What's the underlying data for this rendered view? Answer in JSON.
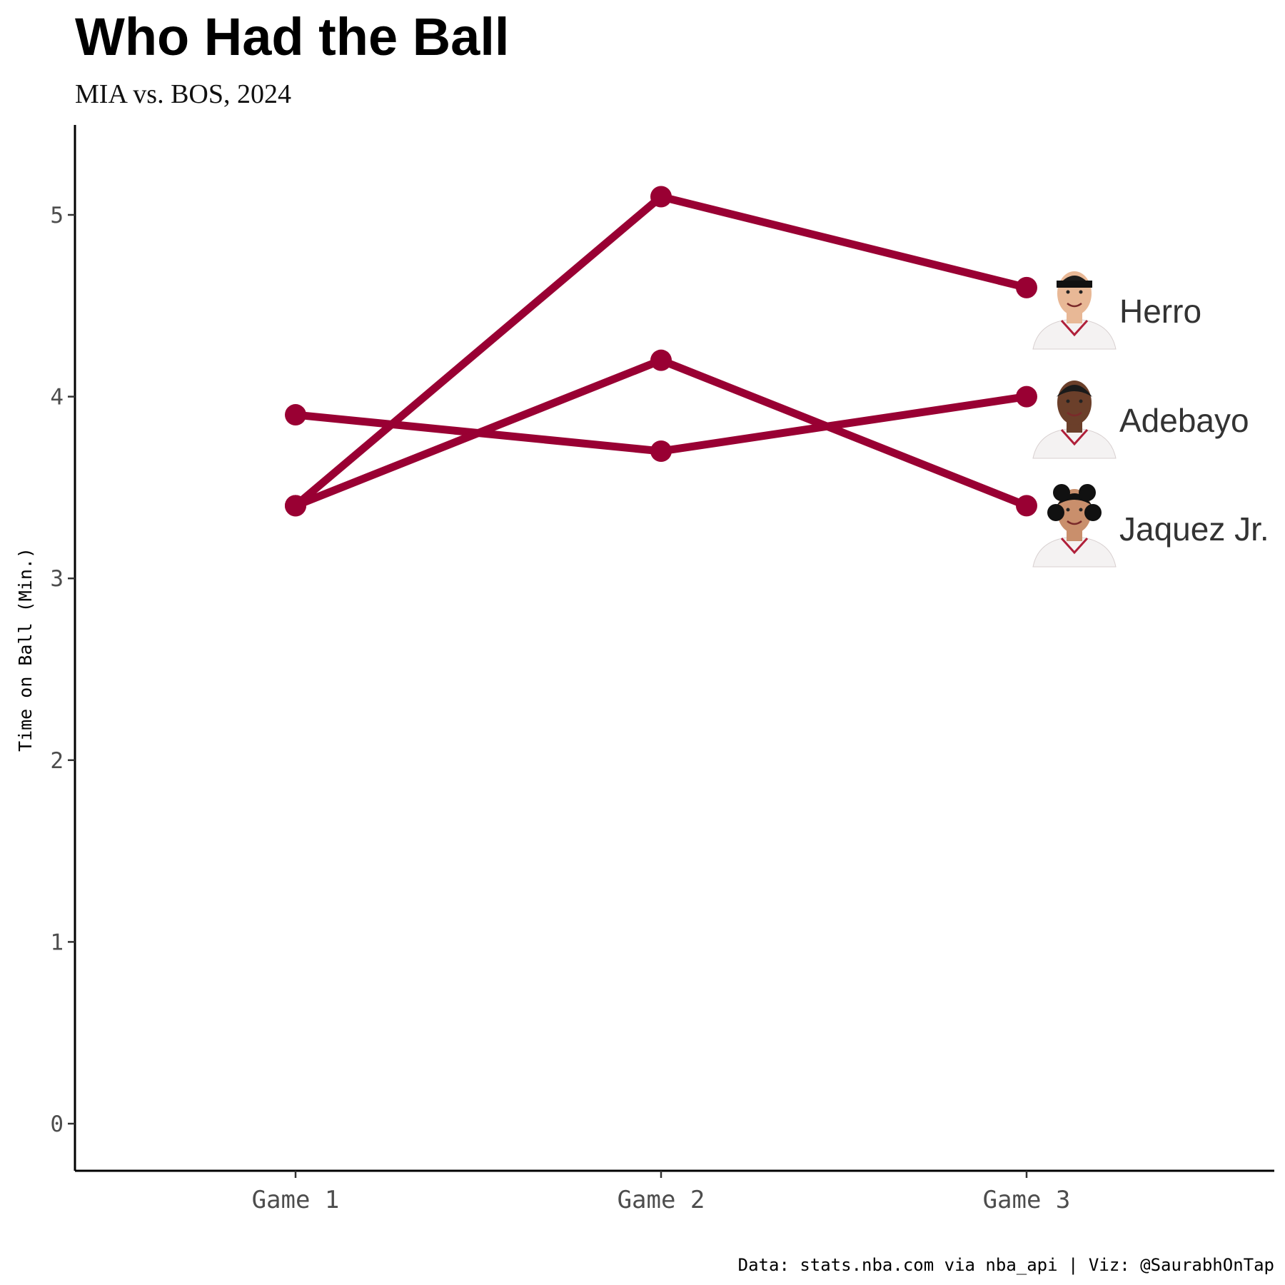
{
  "chart_data": {
    "type": "line",
    "title": "Who Had the Ball",
    "subtitle": "MIA vs. BOS, 2024",
    "xlabel": "",
    "ylabel": "Time on Ball (Min.)",
    "categories": [
      "Game 1",
      "Game 2",
      "Game 3"
    ],
    "y_ticks": [
      "0",
      "1",
      "2",
      "3",
      "4",
      "5"
    ],
    "ylim": [
      -0.25,
      5.5
    ],
    "grid": false,
    "series": [
      {
        "name": "Herro",
        "values": [
          3.4,
          5.1,
          4.6
        ]
      },
      {
        "name": "Adebayo",
        "values": [
          3.9,
          3.7,
          4.0
        ]
      },
      {
        "name": "Jaquez Jr.",
        "values": [
          3.4,
          4.2,
          3.4
        ]
      }
    ],
    "line_color": "#990033",
    "caption": "Data: stats.nba.com via nba_api | Viz: @SaurabhOnTap"
  }
}
